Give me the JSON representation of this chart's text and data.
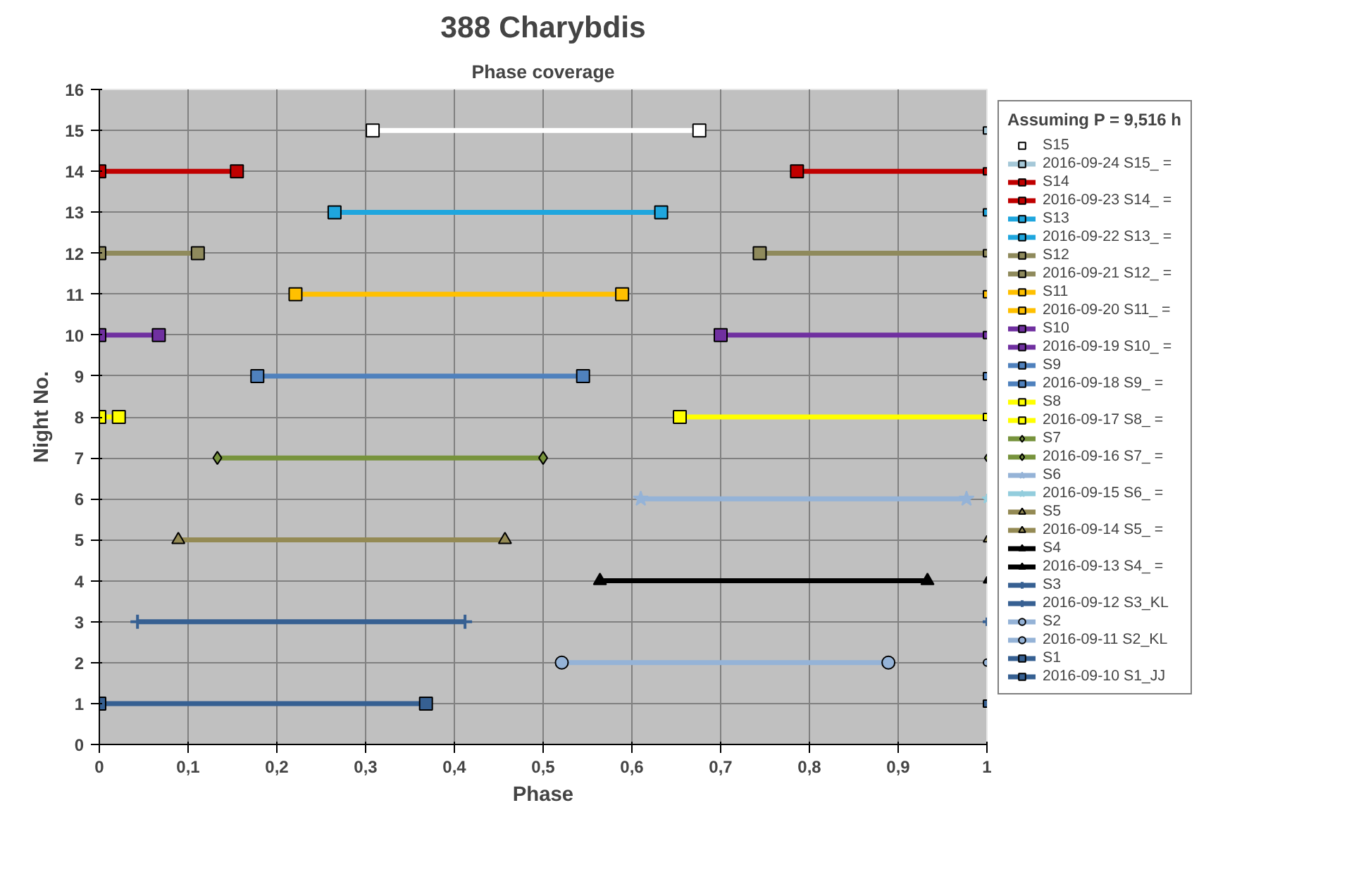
{
  "chart_data": {
    "type": "line",
    "title": "388 Charybdis",
    "subtitle": "Phase coverage",
    "xlabel": "Phase",
    "ylabel": "Night No.",
    "legend_title": "Assuming P = 9,516 h",
    "xlim": [
      0,
      1
    ],
    "ylim": [
      0,
      16
    ],
    "xticks": [
      0,
      {
        "value": 0.1,
        "label": "0,1"
      },
      {
        "value": 0.2,
        "label": "0,2"
      },
      {
        "value": 0.3,
        "label": "0,3"
      },
      {
        "value": 0.4,
        "label": "0,4"
      },
      {
        "value": 0.5,
        "label": "0,5"
      },
      {
        "value": 0.6,
        "label": "0,6"
      },
      {
        "value": 0.7,
        "label": "0,7"
      },
      {
        "value": 0.8,
        "label": "0,8"
      },
      {
        "value": 0.9,
        "label": "0,9"
      },
      1
    ],
    "yticks": [
      0,
      1,
      2,
      3,
      4,
      5,
      6,
      7,
      8,
      9,
      10,
      11,
      12,
      13,
      14,
      15,
      16
    ],
    "grid": true,
    "legend": "right",
    "series": [
      {
        "name": "S15",
        "color": "#ffffff",
        "marker": "square",
        "x": [
          0.308,
          0.676
        ],
        "values": [
          15,
          15
        ]
      },
      {
        "name": "2016-09-24 S15_ =",
        "color": "#a5c8d8",
        "marker": "square",
        "x": [
          1
        ],
        "values": [
          15
        ]
      },
      {
        "name": "S14",
        "color": "#c00000",
        "marker": "square",
        "x": [
          0,
          0.155,
          null,
          0.786,
          1
        ],
        "values": [
          14,
          14,
          null,
          14,
          14
        ]
      },
      {
        "name": "2016-09-23 S14_ =",
        "color": "#c00000",
        "marker": "square",
        "x": [
          1
        ],
        "values": [
          14
        ]
      },
      {
        "name": "S13",
        "color": "#1fa6de",
        "marker": "square",
        "x": [
          0.265,
          0.633
        ],
        "values": [
          13,
          13
        ]
      },
      {
        "name": "2016-09-22 S13_ =",
        "color": "#1fa6de",
        "marker": "square",
        "x": [
          1
        ],
        "values": [
          13
        ]
      },
      {
        "name": "S12",
        "color": "#8f8a5c",
        "marker": "square",
        "x": [
          0,
          0.111,
          null,
          0.744,
          1
        ],
        "values": [
          12,
          12,
          null,
          12,
          12
        ]
      },
      {
        "name": "2016-09-21 S12_ =",
        "color": "#8f8a5c",
        "marker": "square",
        "x": [
          1
        ],
        "values": [
          12
        ]
      },
      {
        "name": "S11",
        "color": "#ffc000",
        "marker": "square",
        "x": [
          0.221,
          0.589
        ],
        "values": [
          11,
          11
        ]
      },
      {
        "name": "2016-09-20 S11_ =",
        "color": "#ffc000",
        "marker": "square",
        "x": [
          1
        ],
        "values": [
          11
        ]
      },
      {
        "name": "S10",
        "color": "#7030a0",
        "marker": "square",
        "x": [
          0,
          0.067,
          null,
          0.7,
          1
        ],
        "values": [
          10,
          10,
          null,
          10,
          10
        ]
      },
      {
        "name": "2016-09-19 S10_ =",
        "color": "#7030a0",
        "marker": "square",
        "x": [
          1
        ],
        "values": [
          10
        ]
      },
      {
        "name": "S9",
        "color": "#4f81bd",
        "marker": "square",
        "x": [
          0.178,
          0.545
        ],
        "values": [
          9,
          9
        ]
      },
      {
        "name": "2016-09-18 S9_ =",
        "color": "#4f81bd",
        "marker": "square",
        "x": [
          1
        ],
        "values": [
          9
        ]
      },
      {
        "name": "S8",
        "color": "#ffff00",
        "marker": "square",
        "x": [
          0,
          0.022,
          null,
          0.654,
          1
        ],
        "values": [
          8,
          8,
          null,
          8,
          8
        ]
      },
      {
        "name": "2016-09-17 S8_ =",
        "color": "#ffff00",
        "marker": "square",
        "x": [
          1
        ],
        "values": [
          8
        ]
      },
      {
        "name": "S7",
        "color": "#77933c",
        "marker": "diamond",
        "x": [
          0.133,
          0.5
        ],
        "values": [
          7,
          7
        ]
      },
      {
        "name": "2016-09-16 S7_ =",
        "color": "#77933c",
        "marker": "diamond",
        "x": [
          1
        ],
        "values": [
          7
        ]
      },
      {
        "name": "S6",
        "color": "#95b3d7",
        "marker": "star",
        "x": [
          0.61,
          0.977
        ],
        "values": [
          6,
          6
        ]
      },
      {
        "name": "2016-09-15 S6_ =",
        "color": "#93cddd",
        "marker": "star",
        "x": [
          1
        ],
        "values": [
          6
        ]
      },
      {
        "name": "S5",
        "color": "#948a54",
        "marker": "triangle",
        "x": [
          0.089,
          0.457
        ],
        "values": [
          5,
          5
        ]
      },
      {
        "name": "2016-09-14 S5_ =",
        "color": "#948a54",
        "marker": "triangle",
        "x": [
          1
        ],
        "values": [
          5
        ]
      },
      {
        "name": "S4",
        "color": "#000000",
        "marker": "triangle",
        "x": [
          0.564,
          0.933
        ],
        "values": [
          4,
          4
        ]
      },
      {
        "name": "2016-09-13 S4_ =",
        "color": "#000000",
        "marker": "triangle",
        "x": [
          1
        ],
        "values": [
          4
        ]
      },
      {
        "name": "S3",
        "color": "#376092",
        "marker": "cross",
        "x": [
          0.043,
          0.412
        ],
        "values": [
          3,
          3
        ]
      },
      {
        "name": "2016-09-12 S3_KL",
        "color": "#376092",
        "marker": "cross",
        "x": [
          1
        ],
        "values": [
          3
        ]
      },
      {
        "name": "S2",
        "color": "#95b3d7",
        "marker": "circle",
        "x": [
          0.521,
          0.889
        ],
        "values": [
          2,
          2
        ]
      },
      {
        "name": "2016-09-11 S2_KL",
        "color": "#95b3d7",
        "marker": "circle",
        "x": [
          1
        ],
        "values": [
          2
        ]
      },
      {
        "name": "S1",
        "color": "#366092",
        "marker": "square",
        "x": [
          0,
          0.368
        ],
        "values": [
          1,
          1
        ]
      },
      {
        "name": "2016-09-10 S1_JJ",
        "color": "#366092",
        "marker": "square",
        "x": [
          1
        ],
        "values": [
          1
        ]
      }
    ]
  }
}
